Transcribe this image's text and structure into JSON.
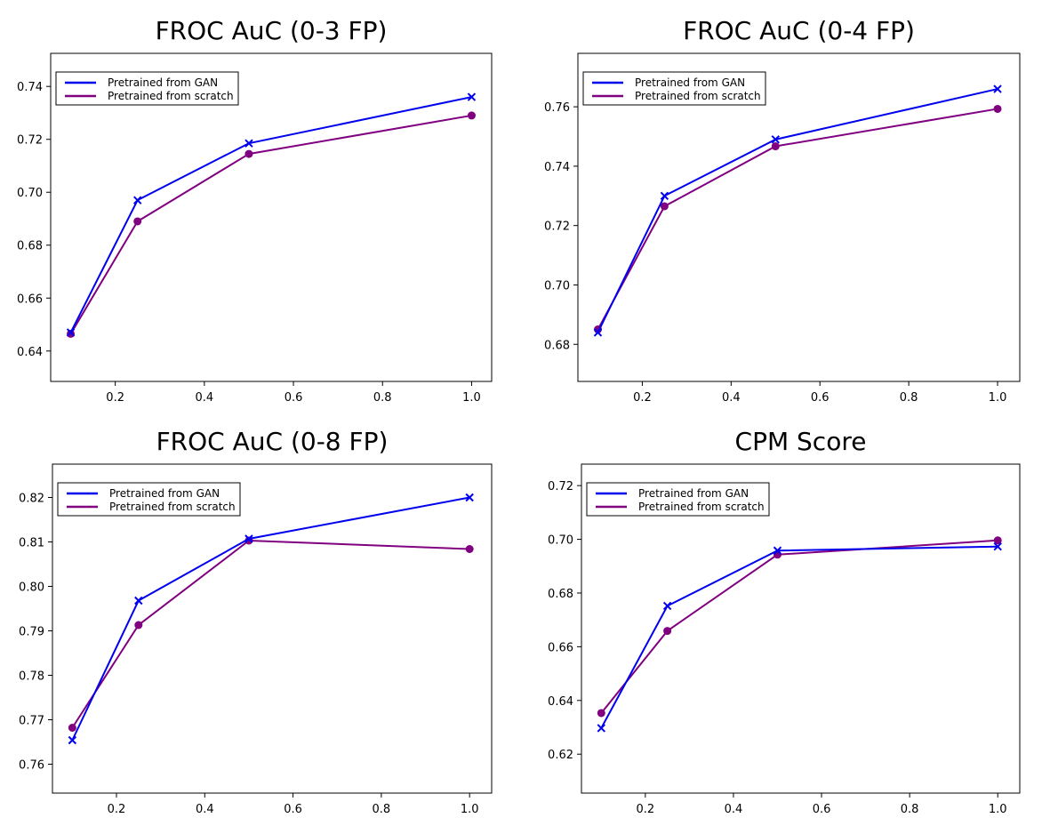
{
  "chart_data": [
    {
      "type": "line",
      "title": "FROC AuC (0-3 FP)",
      "xlabel": "",
      "ylabel": "",
      "x": [
        0.1,
        0.25,
        0.5,
        1.0
      ],
      "xlim": [
        0.055,
        1.045
      ],
      "ylim": [
        0.6285,
        0.7525
      ],
      "xticks": [
        0.2,
        0.4,
        0.6,
        0.8,
        1.0
      ],
      "yticks": [
        0.64,
        0.66,
        0.68,
        0.7,
        0.72,
        0.74
      ],
      "legend_position": "upper left",
      "grid": false,
      "series": [
        {
          "name": "Pretrained from GAN",
          "marker": "x",
          "color": "#0000ee",
          "values": [
            0.647,
            0.697,
            0.7185,
            0.736
          ]
        },
        {
          "name": "Pretrained from scratch",
          "marker": "o",
          "color": "#800080",
          "values": [
            0.6465,
            0.689,
            0.7145,
            0.729
          ]
        }
      ]
    },
    {
      "type": "line",
      "title": "FROC AuC (0-4 FP)",
      "xlabel": "",
      "ylabel": "",
      "x": [
        0.1,
        0.25,
        0.5,
        1.0
      ],
      "xlim": [
        0.055,
        1.05
      ],
      "ylim": [
        0.6675,
        0.778
      ],
      "xticks": [
        0.2,
        0.4,
        0.6,
        0.8,
        1.0
      ],
      "yticks": [
        0.68,
        0.7,
        0.72,
        0.74,
        0.76
      ],
      "legend_position": "upper left",
      "grid": false,
      "series": [
        {
          "name": "Pretrained from GAN",
          "marker": "x",
          "color": "#0000ee",
          "values": [
            0.684,
            0.73,
            0.749,
            0.766
          ]
        },
        {
          "name": "Pretrained from scratch",
          "marker": "o",
          "color": "#800080",
          "values": [
            0.685,
            0.7265,
            0.7467,
            0.7593
          ]
        }
      ]
    },
    {
      "type": "line",
      "title": "FROC AuC (0-8 FP)",
      "xlabel": "",
      "ylabel": "",
      "x": [
        0.1,
        0.25,
        0.5,
        1.0
      ],
      "xlim": [
        0.055,
        1.05
      ],
      "ylim": [
        0.7535,
        0.8275
      ],
      "xticks": [
        0.2,
        0.4,
        0.6,
        0.8,
        1.0
      ],
      "yticks": [
        0.76,
        0.77,
        0.78,
        0.79,
        0.8,
        0.81,
        0.82
      ],
      "legend_position": "upper left",
      "grid": false,
      "series": [
        {
          "name": "Pretrained from GAN",
          "marker": "x",
          "color": "#0000ee",
          "values": [
            0.7654,
            0.7968,
            0.8107,
            0.82
          ]
        },
        {
          "name": "Pretrained from scratch",
          "marker": "o",
          "color": "#800080",
          "values": [
            0.7682,
            0.7913,
            0.8103,
            0.8084
          ]
        }
      ]
    },
    {
      "type": "line",
      "title": "CPM Score",
      "xlabel": "",
      "ylabel": "",
      "x": [
        0.1,
        0.25,
        0.5,
        1.0
      ],
      "xlim": [
        0.055,
        1.05
      ],
      "ylim": [
        0.6055,
        0.728
      ],
      "xticks": [
        0.2,
        0.4,
        0.6,
        0.8,
        1.0
      ],
      "yticks": [
        0.62,
        0.64,
        0.66,
        0.68,
        0.7,
        0.72
      ],
      "legend_position": "upper left",
      "grid": false,
      "series": [
        {
          "name": "Pretrained from GAN",
          "marker": "x",
          "color": "#0000ee",
          "values": [
            0.6297,
            0.6752,
            0.6958,
            0.6973
          ]
        },
        {
          "name": "Pretrained from scratch",
          "marker": "o",
          "color": "#800080",
          "values": [
            0.6353,
            0.6659,
            0.6943,
            0.6996
          ]
        }
      ]
    }
  ]
}
